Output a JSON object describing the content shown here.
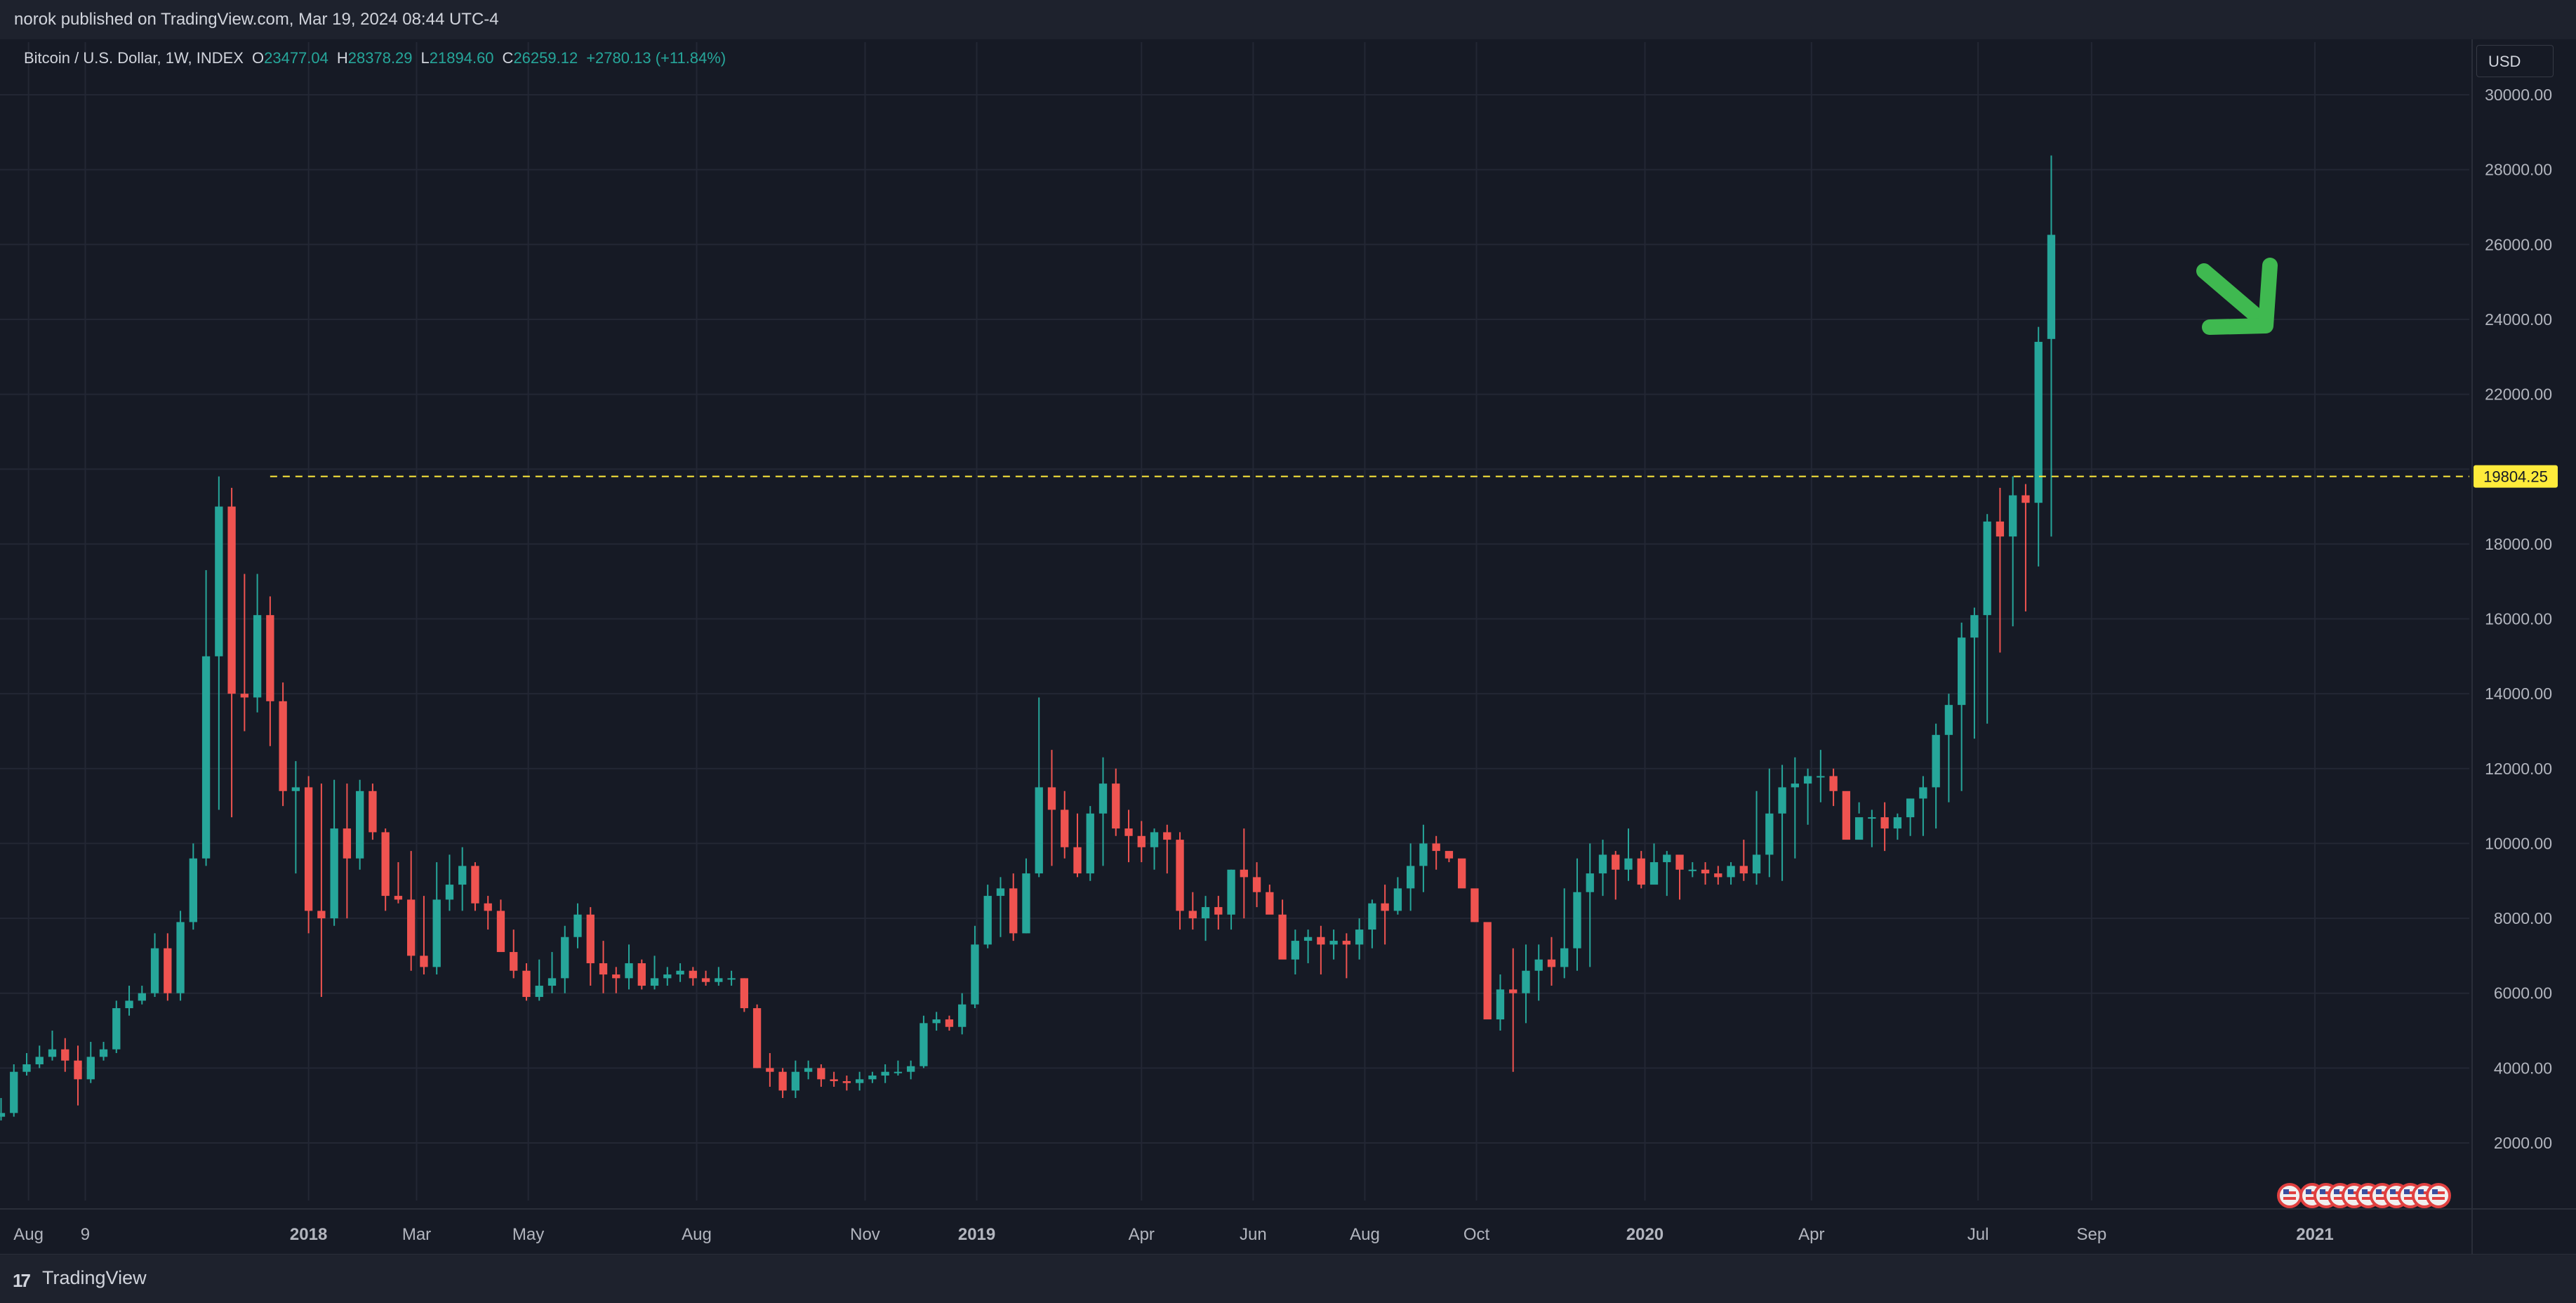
{
  "header": {
    "published": "norok published on TradingView.com, Mar 19, 2024 08:44 UTC-4"
  },
  "legend": {
    "symbol": "Bitcoin / U.S. Dollar, 1W, INDEX",
    "o_label": "O",
    "o": "23477.04",
    "h_label": "H",
    "h": "28378.29",
    "l_label": "L",
    "l": "21894.60",
    "c_label": "C",
    "c": "26259.12",
    "change": "+2780.13 (+11.84%)"
  },
  "currency_button": "USD",
  "footer": {
    "brand": "TradingView",
    "logo": "17"
  },
  "colors": {
    "up": "#26a69a",
    "down": "#ef5350",
    "bg": "#161a25",
    "grid": "#232734",
    "level": "#ffeb3b",
    "arrow": "#3fb950"
  },
  "icons": {
    "arrow": "green-arrow-down-right",
    "event_markers": "us-flag-event-markers"
  },
  "chart_data": {
    "type": "candlestick",
    "interval": "1W",
    "y_scale": "linear",
    "y_axis_side": "right",
    "ylim": [
      0,
      31000
    ],
    "y_ticks": [
      "2000.00",
      "4000.00",
      "6000.00",
      "8000.00",
      "10000.00",
      "12000.00",
      "14000.00",
      "16000.00",
      "18000.00",
      "20000.00",
      "22000.00",
      "24000.00",
      "26000.00",
      "28000.00",
      "30000.00"
    ],
    "x_ticks": [
      {
        "label": "Aug",
        "date": "2017-08-01",
        "bold": false
      },
      {
        "label": "9",
        "date": "2017-09-01",
        "bold": false
      },
      {
        "label": "2018",
        "date": "2018-01-01",
        "bold": true
      },
      {
        "label": "Mar",
        "date": "2018-03-01",
        "bold": false
      },
      {
        "label": "May",
        "date": "2018-05-01",
        "bold": false
      },
      {
        "label": "Aug",
        "date": "2018-08-01",
        "bold": false
      },
      {
        "label": "Nov",
        "date": "2018-11-01",
        "bold": false
      },
      {
        "label": "2019",
        "date": "2019-01-01",
        "bold": true
      },
      {
        "label": "Apr",
        "date": "2019-04-01",
        "bold": false
      },
      {
        "label": "Jun",
        "date": "2019-06-01",
        "bold": false
      },
      {
        "label": "Aug",
        "date": "2019-08-01",
        "bold": false
      },
      {
        "label": "Oct",
        "date": "2019-10-01",
        "bold": false
      },
      {
        "label": "2020",
        "date": "2020-01-01",
        "bold": true
      },
      {
        "label": "Apr",
        "date": "2020-04-01",
        "bold": false
      },
      {
        "label": "Jul",
        "date": "2020-07-01",
        "bold": false
      },
      {
        "label": "Sep",
        "date": "2020-09-01",
        "bold": false
      },
      {
        "label": "2021",
        "date": "2021-01-01",
        "bold": true
      }
    ],
    "grid": true,
    "horizontal_level": {
      "value": 19804.25,
      "label": "19804.25",
      "style": "dashed",
      "from_date": "2017-12-11"
    },
    "first_week": "2017-07-17",
    "closes": [
      2800,
      3900,
      4100,
      4300,
      4500,
      4200,
      3700,
      4300,
      4500,
      5600,
      5800,
      6000,
      7200,
      6000,
      7900,
      9600,
      15000,
      19000,
      14000,
      13900,
      16100,
      13800,
      11400,
      11500,
      8200,
      8000,
      10400,
      9600,
      11400,
      10300,
      8600,
      8500,
      7000,
      6700,
      8500,
      8900,
      9400,
      8400,
      8200,
      7100,
      6600,
      5900,
      6200,
      6400,
      7500,
      8100,
      6800,
      6500,
      6400,
      6800,
      6200,
      6400,
      6500,
      6600,
      6400,
      6300,
      6400,
      6400,
      5600,
      4000,
      3900,
      3400,
      3900,
      4000,
      3700,
      3650,
      3600,
      3700,
      3800,
      3900,
      3900,
      4050,
      5200,
      5300,
      5100,
      5700,
      7300,
      8600,
      8800,
      7600,
      9200,
      11500,
      10900,
      9900,
      9200,
      10800,
      11600,
      10400,
      10200,
      9900,
      10300,
      10100,
      8200,
      8000,
      8300,
      8100,
      9300,
      9100,
      8700,
      8100,
      6900,
      7400,
      7500,
      7300,
      7400,
      7300,
      7700,
      8400,
      8200,
      8800,
      9400,
      10000,
      9800,
      9600,
      8800,
      7900,
      5300,
      6100,
      6000,
      6600,
      6900,
      6700,
      7200,
      8700,
      9200,
      9700,
      9300,
      9600,
      8900,
      9500,
      9700,
      9300,
      9300,
      9200,
      9100,
      9400,
      9200,
      9700,
      10800,
      11500,
      11600,
      11800,
      11800,
      11400,
      10100,
      10700,
      10700,
      10400,
      10700,
      11200,
      11500,
      12900,
      13700,
      15500,
      16100,
      18600,
      18200,
      19300,
      19100,
      23400,
      26259
    ],
    "opens": [
      2700,
      2800,
      3900,
      4100,
      4300,
      4500,
      4200,
      3700,
      4300,
      4500,
      5600,
      5800,
      6000,
      7200,
      6000,
      7900,
      9600,
      15000,
      19000,
      14000,
      13900,
      16100,
      13800,
      11400,
      11500,
      8200,
      8000,
      10400,
      9600,
      11400,
      10300,
      8600,
      8500,
      7000,
      6700,
      8500,
      8900,
      9400,
      8400,
      8200,
      7100,
      6600,
      5900,
      6200,
      6400,
      7500,
      8100,
      6800,
      6500,
      6400,
      6800,
      6200,
      6400,
      6500,
      6600,
      6400,
      6300,
      6400,
      6400,
      5600,
      4000,
      3900,
      3400,
      3900,
      4000,
      3700,
      3650,
      3600,
      3700,
      3800,
      3900,
      3900,
      4050,
      5200,
      5300,
      5100,
      5700,
      7300,
      8600,
      8800,
      7600,
      9200,
      11500,
      10900,
      9900,
      9200,
      10800,
      11600,
      10400,
      10200,
      9900,
      10300,
      10100,
      8200,
      8000,
      8300,
      8100,
      9300,
      9100,
      8700,
      8100,
      6900,
      7400,
      7500,
      7300,
      7400,
      7300,
      7700,
      8400,
      8200,
      8800,
      9400,
      10000,
      9800,
      9600,
      8800,
      7900,
      5300,
      6100,
      6000,
      6600,
      6900,
      6700,
      7200,
      8700,
      9200,
      9700,
      9300,
      9600,
      8900,
      9500,
      9700,
      9300,
      9300,
      9200,
      9100,
      9400,
      9200,
      9700,
      10800,
      11500,
      11600,
      11800,
      11800,
      11400,
      10100,
      10700,
      10700,
      10400,
      10700,
      11200,
      11500,
      12900,
      13700,
      15500,
      16100,
      18600,
      18200,
      19300,
      19100,
      23477.04
    ],
    "highs": [
      3200,
      4100,
      4400,
      4600,
      5000,
      4800,
      4600,
      4700,
      4700,
      5800,
      6200,
      6200,
      7600,
      7600,
      8200,
      10000,
      17300,
      19804.25,
      19500,
      17200,
      17200,
      16600,
      14300,
      12200,
      11800,
      11600,
      11700,
      11600,
      11700,
      11600,
      10400,
      9500,
      9800,
      8600,
      9500,
      9700,
      9900,
      9500,
      8600,
      8500,
      7700,
      6800,
      6900,
      7100,
      7800,
      8400,
      8300,
      7400,
      6700,
      7300,
      6900,
      7000,
      6700,
      6800,
      6700,
      6600,
      6700,
      6600,
      6400,
      5700,
      4400,
      4000,
      4200,
      4200,
      4100,
      3900,
      3800,
      3900,
      3900,
      4100,
      4200,
      4200,
      5400,
      5500,
      5400,
      6000,
      7800,
      8900,
      9100,
      9200,
      9600,
      13900,
      12500,
      11400,
      10800,
      11000,
      12300,
      12000,
      10900,
      10600,
      10400,
      10500,
      10300,
      8700,
      8600,
      8600,
      9300,
      10400,
      9500,
      8900,
      8500,
      7700,
      7700,
      7800,
      7700,
      7600,
      8000,
      8500,
      8900,
      9100,
      10000,
      10500,
      10200,
      9700,
      9200,
      7900,
      6800,
      6500,
      7200,
      7300,
      7300,
      7500,
      8800,
      9600,
      10000,
      10100,
      9800,
      10400,
      9800,
      10000,
      9800,
      9500,
      9500,
      9500,
      9400,
      9500,
      10100,
      11400,
      12000,
      12100,
      12300,
      12000,
      12500,
      12000,
      11200,
      10800,
      10900,
      11100,
      10800,
      11200,
      11800,
      13200,
      14000,
      15900,
      16300,
      18800,
      19500,
      19804.25,
      19600,
      23800,
      28378.29
    ],
    "lows": [
      2600,
      2700,
      3800,
      4000,
      4200,
      3900,
      3000,
      3600,
      4200,
      4400,
      5400,
      5700,
      5900,
      5800,
      5800,
      7700,
      9400,
      10900,
      10700,
      13000,
      13500,
      12600,
      11000,
      9200,
      7600,
      5900,
      7800,
      8000,
      9300,
      10100,
      8200,
      8400,
      6600,
      6500,
      6500,
      8200,
      8200,
      8200,
      7700,
      7200,
      6400,
      5800,
      5800,
      6000,
      6000,
      7200,
      6200,
      6000,
      6000,
      6100,
      6100,
      6100,
      6200,
      6300,
      6200,
      6200,
      6200,
      6200,
      5500,
      4000,
      3500,
      3200,
      3200,
      3700,
      3500,
      3500,
      3400,
      3400,
      3600,
      3600,
      3800,
      3700,
      4000,
      5000,
      5000,
      4900,
      5600,
      7200,
      7500,
      7400,
      7600,
      9100,
      9400,
      9600,
      9100,
      9000,
      9400,
      10200,
      9500,
      9500,
      9300,
      9200,
      7700,
      7700,
      7400,
      7700,
      7700,
      8000,
      8300,
      8200,
      7500,
      6500,
      6800,
      6500,
      6900,
      6400,
      6900,
      7200,
      7300,
      8100,
      8200,
      8700,
      9300,
      9500,
      9200,
      8200,
      7600,
      5000,
      3900,
      5200,
      5800,
      6200,
      6400,
      6600,
      6700,
      8600,
      8500,
      9000,
      8800,
      9100,
      8600,
      8500,
      9100,
      8900,
      8900,
      8900,
      9000,
      8900,
      9100,
      9000,
      9600,
      10500,
      11100,
      11000,
      11200,
      11100,
      9900,
      9800,
      10100,
      10200,
      10200,
      10400,
      11100,
      11400,
      12800,
      13200,
      15100,
      15800,
      16200,
      17400,
      18200,
      17600,
      18500,
      21894.6
    ]
  }
}
